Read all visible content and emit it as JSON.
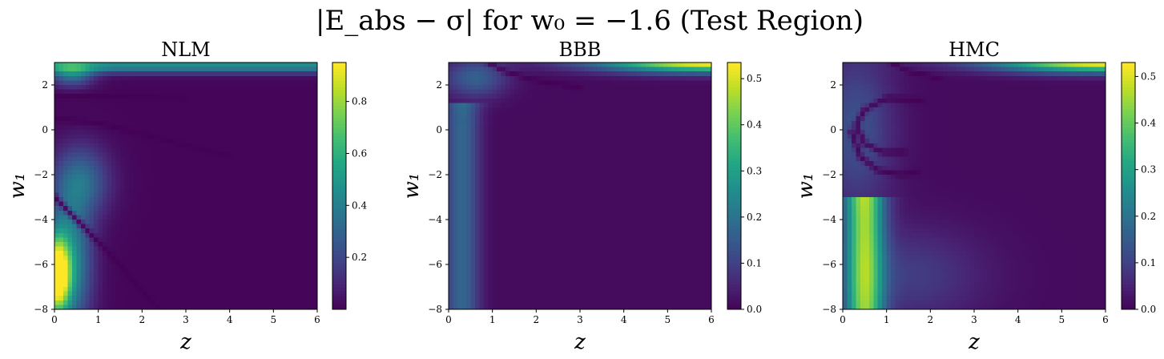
{
  "figure": {
    "suptitle": "|E_abs − σ| for w₀ = −1.6 (Test Region)"
  },
  "chart_data": [
    {
      "type": "heatmap",
      "title": "NLM",
      "xlabel": "z",
      "ylabel": "w₁",
      "xlim": [
        0,
        6
      ],
      "ylim": [
        -8,
        3
      ],
      "x_ticks": [
        0,
        1,
        2,
        3,
        4,
        5,
        6
      ],
      "y_ticks": [
        -8,
        -6,
        -4,
        -2,
        0,
        2
      ],
      "colorbar": {
        "min": 0.0,
        "max": 0.95,
        "ticks": [
          0.2,
          0.4,
          0.6,
          0.8
        ],
        "tick_labels": [
          "0.2",
          "0.4",
          "0.6",
          "0.8"
        ]
      },
      "colormap": "viridis",
      "features": [
        {
          "kind": "blob",
          "z": 0.05,
          "w1": -6.5,
          "sz": 0.2,
          "sw": 1.2,
          "value": 0.95
        },
        {
          "kind": "blob",
          "z": 0.35,
          "w1": -6.0,
          "sz": 0.35,
          "sw": 2.0,
          "value": 0.45
        },
        {
          "kind": "blob",
          "z": 0.6,
          "w1": -2.3,
          "sz": 0.45,
          "sw": 1.1,
          "value": 0.32
        },
        {
          "kind": "blob",
          "z": 0.4,
          "w1": 2.5,
          "sz": 0.35,
          "sw": 0.4,
          "value": 0.35
        },
        {
          "kind": "band",
          "w1": 2.85,
          "width": 0.22,
          "value": 0.45,
          "z_from": 0.0,
          "z_to": 6.0
        },
        {
          "kind": "line",
          "points": [
            [
              0,
              -3.0
            ],
            [
              0.6,
              -4.2
            ],
            [
              1.3,
              -5.6
            ],
            [
              2.0,
              -7.2
            ],
            [
              2.4,
              -8.0
            ]
          ],
          "width": 0.12,
          "value": 0.0
        },
        {
          "kind": "line",
          "points": [
            [
              0,
              0.5
            ],
            [
              1.0,
              0.3
            ],
            [
              2.0,
              -0.2
            ],
            [
              3.0,
              -0.7
            ],
            [
              4.0,
              -1.2
            ]
          ],
          "width": 0.12,
          "value": 0.0
        },
        {
          "kind": "line",
          "points": [
            [
              0,
              1.5
            ],
            [
              1.0,
              1.5
            ],
            [
              2.0,
              1.45
            ],
            [
              3.0,
              1.4
            ]
          ],
          "width": 0.1,
          "value": 0.0
        }
      ]
    },
    {
      "type": "heatmap",
      "title": "BBB",
      "xlabel": "z",
      "ylabel": "w₁",
      "xlim": [
        0,
        6
      ],
      "ylim": [
        -8,
        3
      ],
      "x_ticks": [
        0,
        1,
        2,
        3,
        4,
        5,
        6
      ],
      "y_ticks": [
        -8,
        -6,
        -4,
        -2,
        0,
        2
      ],
      "colorbar": {
        "min": 0.0,
        "max": 0.535,
        "ticks": [
          0.0,
          0.1,
          0.2,
          0.3,
          0.4,
          0.5
        ],
        "tick_labels": [
          "0.0",
          "0.1",
          "0.2",
          "0.3",
          "0.4",
          "0.5"
        ]
      },
      "colormap": "viridis",
      "features": [
        {
          "kind": "vband",
          "z": 0.3,
          "sz": 0.28,
          "value": 0.16,
          "w1_from": -8.0,
          "w1_to": 1.2
        },
        {
          "kind": "blob",
          "z": 0.6,
          "w1": 2.3,
          "sz": 0.5,
          "sw": 0.6,
          "value": 0.15
        },
        {
          "kind": "corner",
          "z": 6.0,
          "w1": 3.0,
          "sz": 1.8,
          "sw": 0.3,
          "value": 0.53
        },
        {
          "kind": "line",
          "points": [
            [
              0.9,
              3.0
            ],
            [
              1.3,
              2.6
            ],
            [
              2.0,
              2.2
            ],
            [
              3.0,
              1.9
            ]
          ],
          "width": 0.1,
          "value": 0.0
        }
      ]
    },
    {
      "type": "heatmap",
      "title": "HMC",
      "xlabel": "z",
      "ylabel": "w₁",
      "xlim": [
        0,
        6
      ],
      "ylim": [
        -8,
        3
      ],
      "x_ticks": [
        0,
        1,
        2,
        3,
        4,
        5,
        6
      ],
      "y_ticks": [
        -8,
        -6,
        -4,
        -2,
        0,
        2
      ],
      "colorbar": {
        "min": 0.0,
        "max": 0.53,
        "ticks": [
          0.0,
          0.1,
          0.2,
          0.3,
          0.4,
          0.5
        ],
        "tick_labels": [
          "0.0",
          "0.1",
          "0.2",
          "0.3",
          "0.4",
          "0.5"
        ]
      },
      "colormap": "viridis",
      "features": [
        {
          "kind": "vband",
          "z": 0.5,
          "sz": 0.3,
          "value": 0.4,
          "w1_from": -8.0,
          "w1_to": -3.0
        },
        {
          "kind": "blob",
          "z": 1.5,
          "w1": -6.5,
          "sz": 1.2,
          "sw": 1.5,
          "value": 0.08
        },
        {
          "kind": "blob",
          "z": 0.3,
          "w1": 0.0,
          "sz": 0.6,
          "sw": 2.5,
          "value": 0.12
        },
        {
          "kind": "corner",
          "z": 6.0,
          "w1": 3.0,
          "sz": 1.8,
          "sw": 0.3,
          "value": 0.52
        },
        {
          "kind": "line",
          "points": [
            [
              1.8,
              1.3
            ],
            [
              1.0,
              1.4
            ],
            [
              0.5,
              0.9
            ],
            [
              0.3,
              0.2
            ],
            [
              0.5,
              -0.6
            ],
            [
              0.9,
              -1.0
            ],
            [
              1.4,
              -1.0
            ]
          ],
          "width": 0.12,
          "value": 0.0
        },
        {
          "kind": "line",
          "points": [
            [
              0.2,
              -0.1
            ],
            [
              0.4,
              -1.2
            ],
            [
              0.8,
              -1.8
            ],
            [
              1.3,
              -2.0
            ],
            [
              1.7,
              -1.9
            ]
          ],
          "width": 0.12,
          "value": 0.0
        },
        {
          "kind": "line",
          "points": [
            [
              1.1,
              3.0
            ],
            [
              1.5,
              2.6
            ],
            [
              2.2,
              2.3
            ]
          ],
          "width": 0.1,
          "value": 0.0
        }
      ]
    }
  ]
}
